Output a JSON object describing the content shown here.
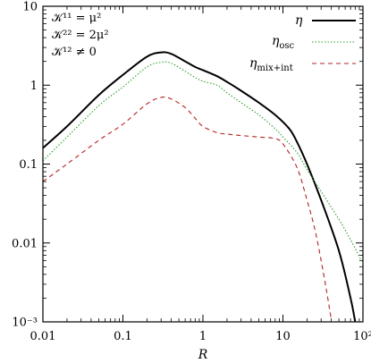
{
  "chart_data": {
    "type": "line",
    "xscale": "log",
    "yscale": "log",
    "xlim": [
      0.01,
      100
    ],
    "ylim": [
      0.001,
      10
    ],
    "xlabel": "R",
    "ylabel": "",
    "x_ticks": [
      {
        "value": 0.01,
        "label": "0.01"
      },
      {
        "value": 0.1,
        "label": "0.1"
      },
      {
        "value": 1,
        "label": "1"
      },
      {
        "value": 10,
        "label": "10"
      },
      {
        "value": 100,
        "label": "10²"
      }
    ],
    "y_ticks": [
      {
        "value": 0.001,
        "label": "10⁻³"
      },
      {
        "value": 0.01,
        "label": "0.01"
      },
      {
        "value": 0.1,
        "label": "0.1"
      },
      {
        "value": 1,
        "label": "1"
      },
      {
        "value": 10,
        "label": "10"
      }
    ],
    "annotations": [
      "𝒦¹¹ = μ²",
      "𝒦²² = 2μ²",
      "𝒦¹² ≠ 0"
    ],
    "legend_position": "top-right",
    "series": [
      {
        "name": "η",
        "color": "#000000",
        "style": "solid",
        "x": [
          0.01,
          0.02,
          0.05,
          0.1,
          0.2,
          0.3,
          0.4,
          0.6,
          0.8,
          1,
          1.5,
          2,
          3,
          5,
          8,
          12,
          15,
          20,
          30,
          50,
          70,
          80
        ],
        "y": [
          0.16,
          0.3,
          0.75,
          1.35,
          2.3,
          2.6,
          2.5,
          2.0,
          1.7,
          1.55,
          1.3,
          1.1,
          0.85,
          0.6,
          0.42,
          0.28,
          0.19,
          0.1,
          0.035,
          0.008,
          0.002,
          0.001
        ]
      },
      {
        "name": "η_osc",
        "color": "#2ca02c",
        "style": "dotted",
        "x": [
          0.01,
          0.02,
          0.05,
          0.1,
          0.2,
          0.3,
          0.4,
          0.6,
          0.8,
          1,
          1.5,
          2,
          3,
          5,
          8,
          10,
          15,
          20,
          30,
          50,
          70,
          100
        ],
        "y": [
          0.11,
          0.22,
          0.55,
          0.95,
          1.7,
          1.95,
          1.9,
          1.5,
          1.25,
          1.12,
          1.0,
          0.8,
          0.6,
          0.42,
          0.28,
          0.22,
          0.14,
          0.085,
          0.045,
          0.02,
          0.011,
          0.0055
        ]
      },
      {
        "name": "η_mix+int",
        "color": "#b22222",
        "style": "dashed",
        "x": [
          0.01,
          0.02,
          0.05,
          0.1,
          0.2,
          0.3,
          0.4,
          0.6,
          0.8,
          1,
          1.5,
          2,
          3,
          5,
          8,
          10,
          15,
          20,
          25,
          30,
          35,
          40
        ],
        "y": [
          0.06,
          0.1,
          0.2,
          0.32,
          0.58,
          0.7,
          0.67,
          0.52,
          0.38,
          0.3,
          0.25,
          0.24,
          0.23,
          0.22,
          0.21,
          0.18,
          0.09,
          0.035,
          0.015,
          0.006,
          0.0025,
          0.0011
        ]
      }
    ]
  },
  "legend": {
    "items": [
      {
        "main": "η",
        "sub": ""
      },
      {
        "main": "η",
        "sub": "osc"
      },
      {
        "main": "η",
        "sub": "mix+int"
      }
    ]
  }
}
